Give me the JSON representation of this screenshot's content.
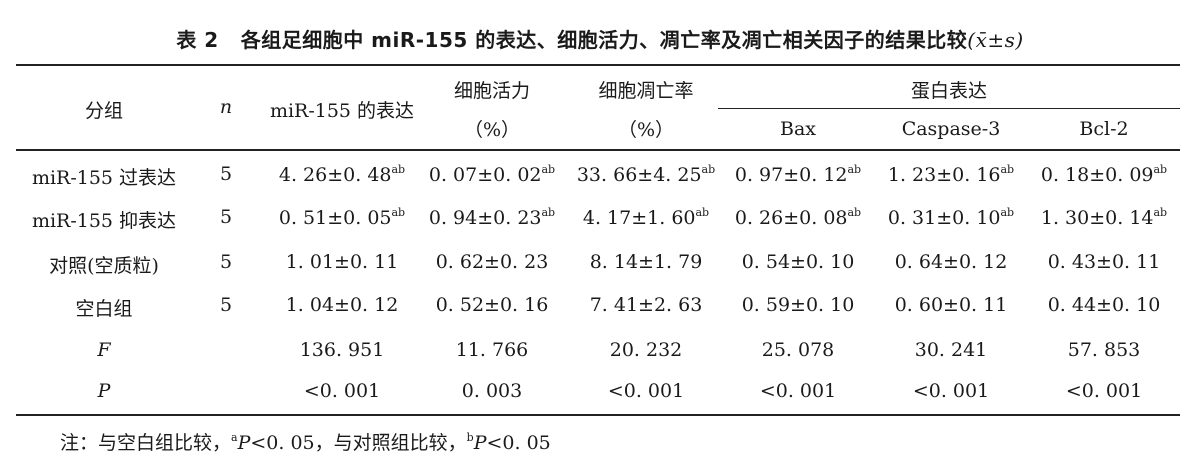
{
  "table": {
    "title_number": "表 2",
    "title_text": "各组足细胞中 miR-155 的表达、细胞活力、凋亡率及凋亡相关因子的结果比较",
    "title_stat": "(x̄±s)",
    "headers": {
      "group": "分组",
      "n": "n",
      "mir155": "miR-155 的表达",
      "viability_line1": "细胞活力",
      "viability_line2": "（%）",
      "apoptosis_line1": "细胞凋亡率",
      "apoptosis_line2": "（%）",
      "protein": "蛋白表达",
      "bax": "Bax",
      "caspase3": "Caspase-3",
      "bcl2": "Bcl-2"
    },
    "rows": [
      {
        "group": "miR-155 过表达",
        "n": "5",
        "mir155": "4. 26±0. 48",
        "mir155_sup": "ab",
        "viability": "0. 07±0. 02",
        "viability_sup": "ab",
        "apoptosis": "33. 66±4. 25",
        "apoptosis_sup": "ab",
        "bax": "0. 97±0. 12",
        "bax_sup": "ab",
        "caspase3": "1. 23±0. 16",
        "caspase3_sup": "ab",
        "bcl2": "0. 18±0. 09",
        "bcl2_sup": "ab"
      },
      {
        "group": "miR-155 抑表达",
        "n": "5",
        "mir155": "0. 51±0. 05",
        "mir155_sup": "ab",
        "viability": "0. 94±0. 23",
        "viability_sup": "ab",
        "apoptosis": "4. 17±1. 60",
        "apoptosis_sup": "ab",
        "bax": "0. 26±0. 08",
        "bax_sup": "ab",
        "caspase3": "0. 31±0. 10",
        "caspase3_sup": "ab",
        "bcl2": "1. 30±0. 14",
        "bcl2_sup": "ab"
      },
      {
        "group": "对照(空质粒)",
        "n": "5",
        "mir155": "1. 01±0. 11",
        "mir155_sup": "",
        "viability": "0. 62±0. 23",
        "viability_sup": "",
        "apoptosis": "8. 14±1. 79",
        "apoptosis_sup": "",
        "bax": "0. 54±0. 10",
        "bax_sup": "",
        "caspase3": "0. 64±0. 12",
        "caspase3_sup": "",
        "bcl2": "0. 43±0. 11",
        "bcl2_sup": ""
      },
      {
        "group": "空白组",
        "n": "5",
        "mir155": "1. 04±0. 12",
        "mir155_sup": "",
        "viability": "0. 52±0. 16",
        "viability_sup": "",
        "apoptosis": "7. 41±2. 63",
        "apoptosis_sup": "",
        "bax": "0. 59±0. 10",
        "bax_sup": "",
        "caspase3": "0. 60±0. 11",
        "caspase3_sup": "",
        "bcl2": "0. 44±0. 10",
        "bcl2_sup": ""
      },
      {
        "group": "F",
        "n": "",
        "mir155": "136. 951",
        "mir155_sup": "",
        "viability": "11. 766",
        "viability_sup": "",
        "apoptosis": "20. 232",
        "apoptosis_sup": "",
        "bax": "25. 078",
        "bax_sup": "",
        "caspase3": "30. 241",
        "caspase3_sup": "",
        "bcl2": "57. 853",
        "bcl2_sup": ""
      },
      {
        "group": "P",
        "n": "",
        "mir155": "<0. 001",
        "mir155_sup": "",
        "viability": "0. 003",
        "viability_sup": "",
        "apoptosis": "<0. 001",
        "apoptosis_sup": "",
        "bax": "<0. 001",
        "bax_sup": "",
        "caspase3": "<0. 001",
        "caspase3_sup": "",
        "bcl2": "<0. 001",
        "bcl2_sup": ""
      }
    ],
    "footnote": {
      "prefix": "注：与空白组比较，",
      "sup_a": "a",
      "p_symbol": "P",
      "cond1": "<0. 05，与对照组比较，",
      "sup_b": "b",
      "cond2": "<0. 05"
    }
  }
}
